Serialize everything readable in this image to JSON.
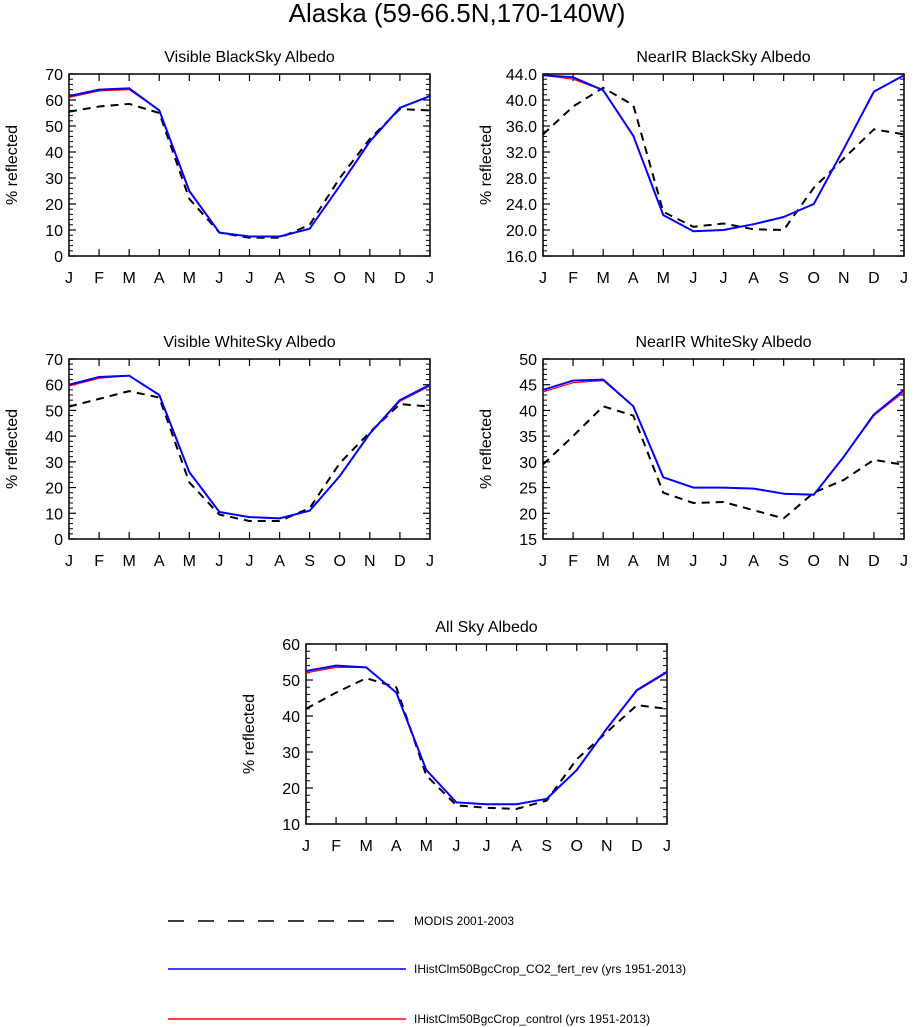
{
  "figure": {
    "title": "Alaska (59-66.5N,170-140W)"
  },
  "colors": {
    "modis": "#000000",
    "co2_fert_rev": "#0000ff",
    "control": "#ff0000",
    "axis": "#000000"
  },
  "legend": {
    "placement": "bottom",
    "entries": [
      {
        "key": "modis",
        "label": "MODIS 2001-2003",
        "style": "dashed"
      },
      {
        "key": "co2_fert_rev",
        "label": "IHistClm50BgcCrop_CO2_fert_rev (yrs 1951-2013)",
        "style": "solid"
      },
      {
        "key": "control",
        "label": "IHistClm50BgcCrop_control (yrs 1951-2013)",
        "style": "solid"
      }
    ]
  },
  "chart_data": [
    {
      "type": "line",
      "title": "Visible BlackSky Albedo",
      "ylabel": "% reflected",
      "xlabel": "",
      "categories": [
        "J",
        "F",
        "M",
        "A",
        "M",
        "J",
        "J",
        "A",
        "S",
        "O",
        "N",
        "D",
        "J"
      ],
      "ylim": [
        0,
        70
      ],
      "yticks": [
        "0",
        "10",
        "20",
        "30",
        "40",
        "50",
        "60",
        "70"
      ],
      "series": [
        {
          "key": "modis",
          "values": [
            55.5,
            57.5,
            58.5,
            55,
            22,
            9,
            7,
            7,
            12,
            30,
            45,
            56.5,
            56
          ]
        },
        {
          "key": "co2_fert_rev",
          "values": [
            61.5,
            64,
            64.5,
            56,
            25,
            9,
            7.5,
            7.5,
            10.5,
            27,
            44,
            57,
            61.5
          ]
        },
        {
          "key": "control",
          "values": [
            61,
            63.5,
            64,
            56,
            25,
            9,
            7.5,
            7.5,
            10.5,
            27,
            44,
            57,
            61.5
          ]
        }
      ]
    },
    {
      "type": "line",
      "title": "NearIR BlackSky Albedo",
      "ylabel": "% reflected",
      "xlabel": "",
      "categories": [
        "J",
        "F",
        "M",
        "A",
        "M",
        "J",
        "J",
        "A",
        "S",
        "O",
        "N",
        "D",
        "J"
      ],
      "ylim": [
        16,
        44
      ],
      "yticks": [
        "16.0",
        "20.0",
        "24.0",
        "28.0",
        "32.0",
        "36.0",
        "40.0",
        "44.0"
      ],
      "series": [
        {
          "key": "modis",
          "values": [
            34.7,
            39,
            41.9,
            39.2,
            22.8,
            20.5,
            21,
            20.1,
            20,
            26.5,
            31,
            35.5,
            34.7
          ]
        },
        {
          "key": "co2_fert_rev",
          "values": [
            43.8,
            43.5,
            41.5,
            34.5,
            22.3,
            19.8,
            20,
            20.9,
            22,
            24,
            32.5,
            41.3,
            43.8
          ]
        },
        {
          "key": "control",
          "values": [
            43.8,
            43.2,
            41.5,
            34.5,
            22.3,
            19.8,
            20,
            20.9,
            22,
            24,
            32.5,
            41.3,
            43.7
          ]
        }
      ]
    },
    {
      "type": "line",
      "title": "Visible WhiteSky Albedo",
      "ylabel": "% reflected",
      "xlabel": "",
      "categories": [
        "J",
        "F",
        "M",
        "A",
        "M",
        "J",
        "J",
        "A",
        "S",
        "O",
        "N",
        "D",
        "J"
      ],
      "ylim": [
        0,
        70
      ],
      "yticks": [
        "0",
        "10",
        "20",
        "30",
        "40",
        "50",
        "60",
        "70"
      ],
      "series": [
        {
          "key": "modis",
          "values": [
            51.5,
            54.5,
            57.5,
            55,
            22,
            9.5,
            7,
            7,
            12,
            29.5,
            41.5,
            52.5,
            51.5
          ]
        },
        {
          "key": "co2_fert_rev",
          "values": [
            60,
            63,
            63.5,
            56,
            26,
            10.5,
            8.5,
            8,
            11,
            24.5,
            41,
            54,
            60
          ]
        },
        {
          "key": "control",
          "values": [
            59.5,
            62.5,
            63.5,
            56,
            26,
            10.5,
            8.5,
            8,
            11,
            24.5,
            41,
            53.5,
            59.5
          ]
        }
      ]
    },
    {
      "type": "line",
      "title": "NearIR WhiteSky Albedo",
      "ylabel": "% reflected",
      "xlabel": "",
      "categories": [
        "J",
        "F",
        "M",
        "A",
        "M",
        "J",
        "J",
        "A",
        "S",
        "O",
        "N",
        "D",
        "J"
      ],
      "ylim": [
        15,
        50
      ],
      "yticks": [
        "15",
        "20",
        "25",
        "30",
        "35",
        "40",
        "45",
        "50"
      ],
      "series": [
        {
          "key": "modis",
          "values": [
            29.5,
            35,
            40.8,
            39,
            24,
            22,
            22.2,
            20.6,
            19,
            24,
            26.5,
            30.4,
            29.4
          ]
        },
        {
          "key": "co2_fert_rev",
          "values": [
            44,
            45.8,
            46,
            40.8,
            27,
            25,
            25,
            24.8,
            23.8,
            23.6,
            31,
            39.2,
            44
          ]
        },
        {
          "key": "control",
          "values": [
            43.6,
            45.4,
            45.8,
            40.8,
            27,
            25,
            25,
            24.8,
            23.8,
            23.6,
            31,
            39,
            43.6
          ]
        }
      ]
    },
    {
      "type": "line",
      "title": "All Sky Albedo",
      "ylabel": "% reflected",
      "xlabel": "",
      "categories": [
        "J",
        "F",
        "M",
        "A",
        "M",
        "J",
        "J",
        "A",
        "S",
        "O",
        "N",
        "D",
        "J"
      ],
      "ylim": [
        10,
        60
      ],
      "yticks": [
        "10",
        "20",
        "30",
        "40",
        "50",
        "60"
      ],
      "series": [
        {
          "key": "modis",
          "values": [
            42,
            46.5,
            50.5,
            48,
            23.5,
            15.2,
            14.5,
            14.2,
            16.5,
            28,
            35.5,
            43,
            42
          ]
        },
        {
          "key": "co2_fert_rev",
          "values": [
            52.5,
            54,
            53.5,
            46.5,
            25,
            16,
            15.5,
            15.5,
            17,
            25,
            36.5,
            47.2,
            52.3
          ]
        },
        {
          "key": "control",
          "values": [
            52,
            53.5,
            53.5,
            46.5,
            25,
            16,
            15.5,
            15.5,
            17,
            25,
            36.5,
            47,
            52
          ]
        }
      ]
    }
  ]
}
